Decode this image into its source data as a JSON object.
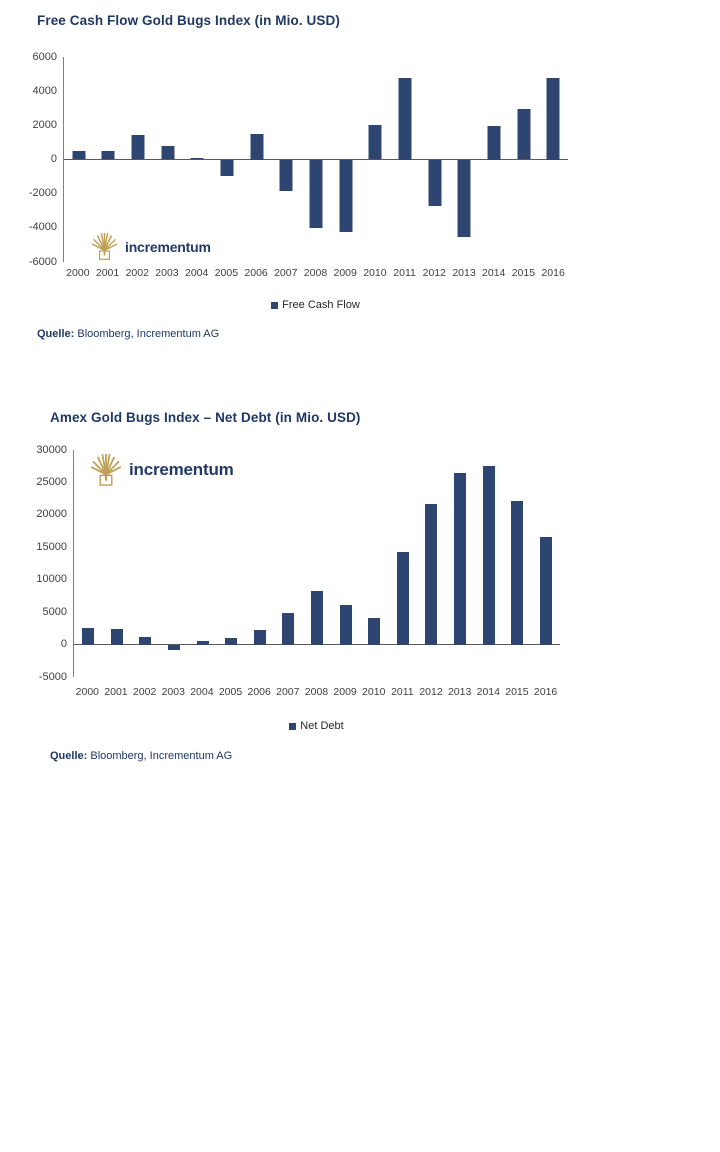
{
  "chart_data": [
    {
      "type": "bar",
      "title": "Free Cash Flow Gold Bugs Index (in Mio. USD)",
      "categories": [
        "2000",
        "2001",
        "2002",
        "2003",
        "2004",
        "2005",
        "2006",
        "2007",
        "2008",
        "2009",
        "2010",
        "2011",
        "2012",
        "2013",
        "2014",
        "2015",
        "2016"
      ],
      "series": [
        {
          "name": "Free Cash Flow",
          "values": [
            500,
            500,
            1450,
            800,
            100,
            -950,
            1500,
            -1850,
            -4000,
            -4250,
            2000,
            4800,
            -2700,
            -4550,
            1950,
            2950,
            4800
          ]
        }
      ],
      "xlabel": "",
      "ylabel": "",
      "ylim": [
        -6000,
        6000
      ],
      "yticks": [
        6000,
        4000,
        2000,
        0,
        -2000,
        -4000,
        -6000
      ],
      "grid": false,
      "legend_position": "bottom",
      "bar_color": "#2E4572",
      "watermark": "incrementum",
      "source_prefix": "Quelle:",
      "source_text": " Bloomberg, Incrementum AG"
    },
    {
      "type": "bar",
      "title": "Amex Gold Bugs Index – Net Debt (in Mio. USD)",
      "categories": [
        "2000",
        "2001",
        "2002",
        "2003",
        "2004",
        "2005",
        "2006",
        "2007",
        "2008",
        "2009",
        "2010",
        "2011",
        "2012",
        "2013",
        "2014",
        "2015",
        "2016"
      ],
      "series": [
        {
          "name": "Net Debt",
          "values": [
            2500,
            2400,
            1200,
            -900,
            600,
            1000,
            2300,
            4900,
            8300,
            6100,
            4100,
            14200,
            21600,
            26400,
            27600,
            22100,
            16600
          ]
        }
      ],
      "xlabel": "",
      "ylabel": "",
      "ylim": [
        -5000,
        30000
      ],
      "yticks": [
        30000,
        25000,
        20000,
        15000,
        10000,
        5000,
        0,
        -5000
      ],
      "grid": false,
      "legend_position": "bottom",
      "bar_color": "#2E4572",
      "watermark": "incrementum",
      "source_prefix": "Quelle:",
      "source_text": " Bloomberg, Incrementum AG"
    }
  ],
  "colors": {
    "title": "#1F3864",
    "bar": "#2E4572",
    "axis_line": "#7f7f7f",
    "zero_line": "#595959",
    "logo_gold": "#BFA054"
  }
}
